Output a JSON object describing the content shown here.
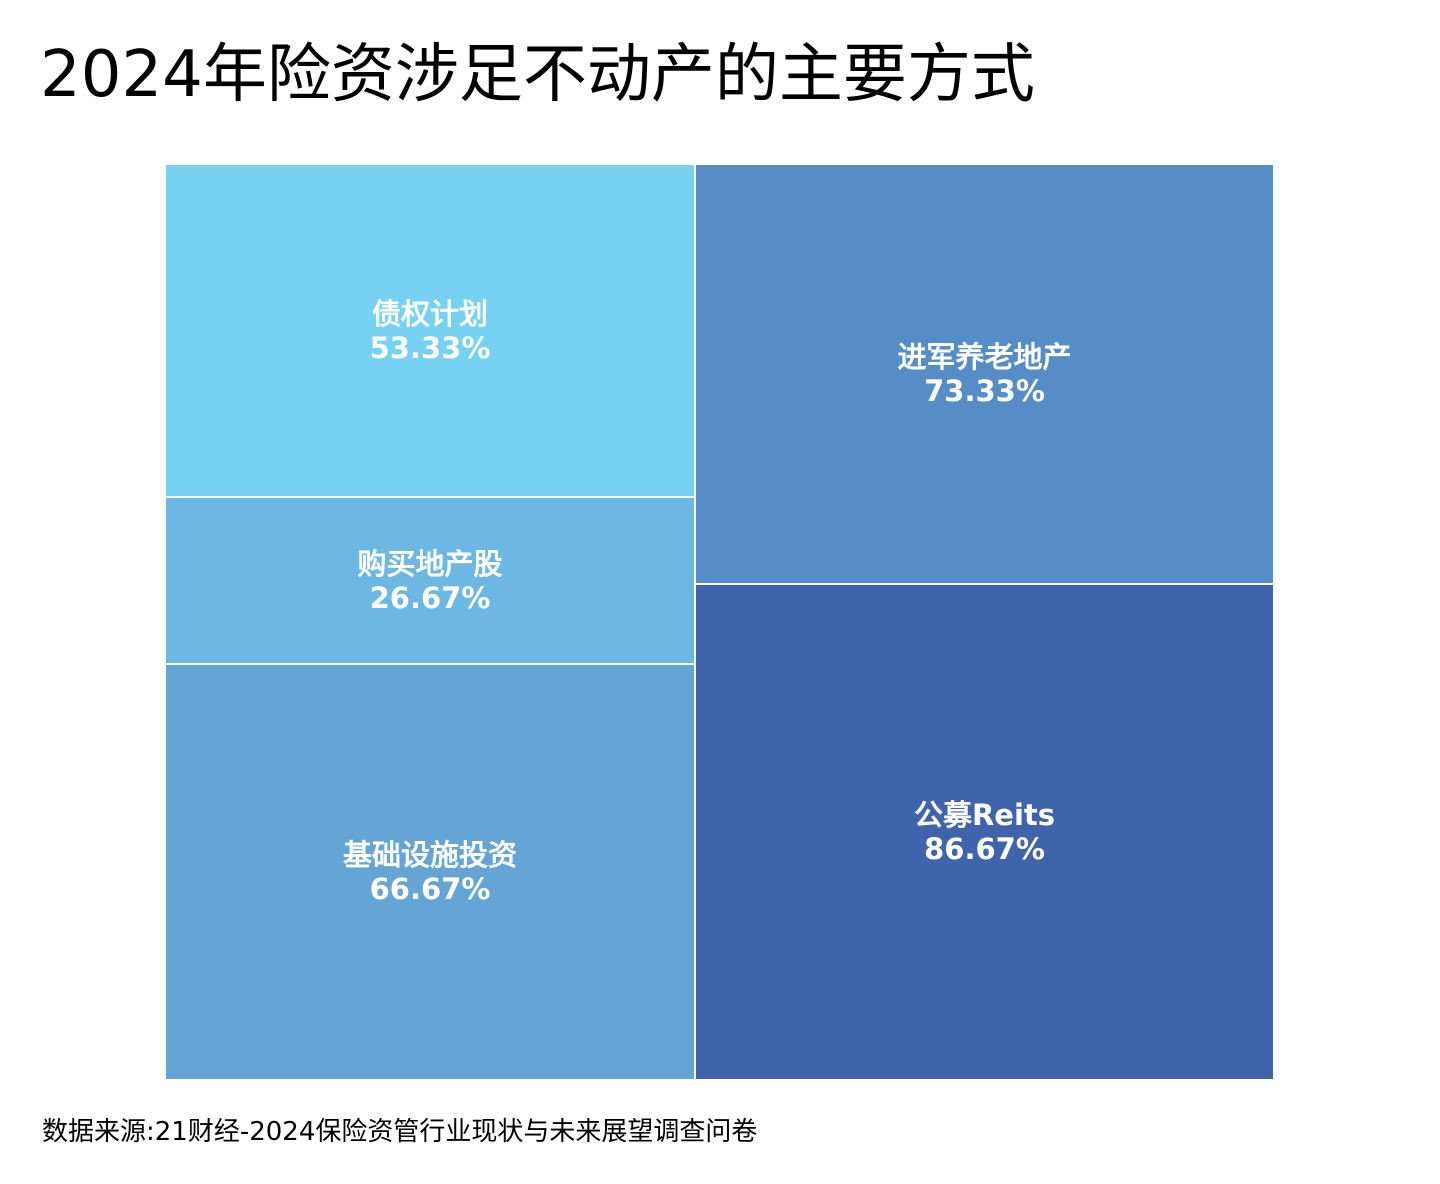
{
  "title": "2024年险资涉足不动产的主要方式",
  "source": "数据来源:21财经-2024保险资管行业现状与未来展望调查问卷",
  "chart_data": {
    "type": "treemap",
    "title": "2024年险资涉足不动产的主要方式",
    "unit": "%",
    "items": [
      {
        "name": "债权计划",
        "value": 53.33,
        "label": "53.33%",
        "color": "#77D1F2"
      },
      {
        "name": "购买地产股",
        "value": 26.67,
        "label": "26.67%",
        "color": "#6DB8E3"
      },
      {
        "name": "基础设施投资",
        "value": 66.67,
        "label": "66.67%",
        "color": "#64A5D5"
      },
      {
        "name": "进军养老地产",
        "value": 73.33,
        "label": "73.33%",
        "color": "#568DC7"
      },
      {
        "name": "公募Reits",
        "value": 86.67,
        "label": "86.67%",
        "color": "#3F64AC"
      }
    ]
  }
}
